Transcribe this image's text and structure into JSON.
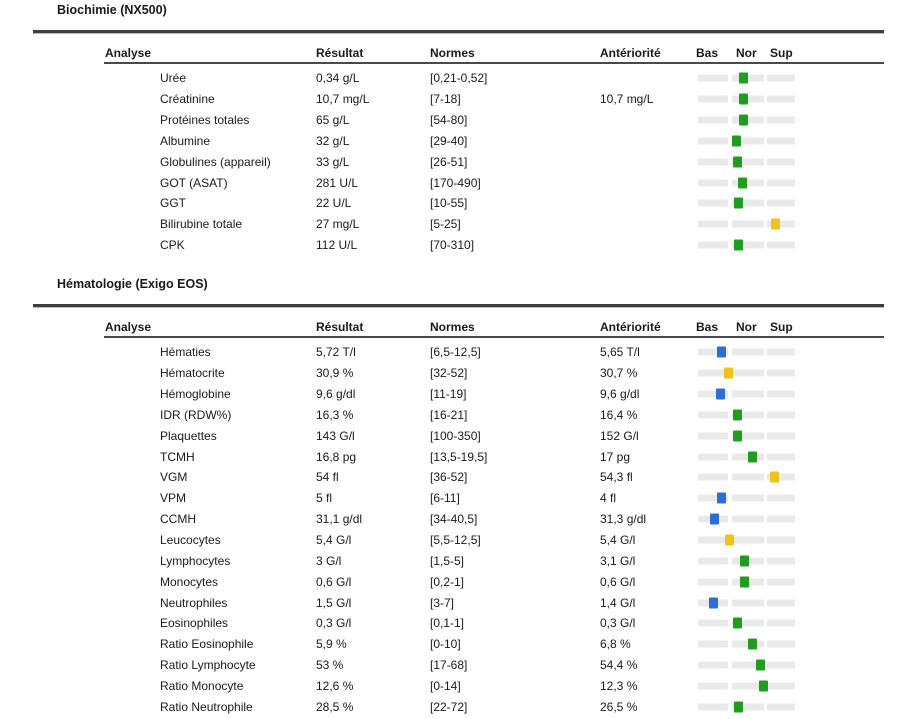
{
  "colors": {
    "green": "#1f9d1f",
    "yellow": "#f2c21a",
    "blue": "#2a6fd8",
    "bar_background": "#e9e9e9",
    "rule": "#3d3d3d",
    "text": "#1a1a1a"
  },
  "columns": {
    "analyse": "Analyse",
    "resultat": "Résultat",
    "normes": "Normes",
    "anteriorite": "Antériorité",
    "bas": "Bas",
    "nor": "Nor",
    "sup": "Sup"
  },
  "sections": [
    {
      "title": "Biochimie (NX500)",
      "rows": [
        {
          "analyse": "Urée",
          "resultat": "0,34 g/L",
          "normes": "[0,21-0,52]",
          "anteriorite": "",
          "marker": {
            "color": "green",
            "pos": 47
          }
        },
        {
          "analyse": "Créatinine",
          "resultat": "10,7 mg/L",
          "normes": "[7-18]",
          "anteriorite": "10,7 mg/L",
          "marker": {
            "color": "green",
            "pos": 47
          }
        },
        {
          "analyse": "Protéines totales",
          "resultat": "65 g/L",
          "normes": "[54-80]",
          "anteriorite": "",
          "marker": {
            "color": "green",
            "pos": 47
          }
        },
        {
          "analyse": "Albumine",
          "resultat": "32 g/L",
          "normes": "[29-40]",
          "anteriorite": "",
          "marker": {
            "color": "green",
            "pos": 40
          }
        },
        {
          "analyse": "Globulines (appareil)",
          "resultat": "33 g/L",
          "normes": "[26-51]",
          "anteriorite": "",
          "marker": {
            "color": "green",
            "pos": 41
          }
        },
        {
          "analyse": "GOT (ASAT)",
          "resultat": "281 U/L",
          "normes": "[170-490]",
          "anteriorite": "",
          "marker": {
            "color": "green",
            "pos": 46
          }
        },
        {
          "analyse": "GGT",
          "resultat": "22 U/L",
          "normes": "[10-55]",
          "anteriorite": "",
          "marker": {
            "color": "green",
            "pos": 42
          }
        },
        {
          "analyse": "Bilirubine totale",
          "resultat": "27 mg/L",
          "normes": "[5-25]",
          "anteriorite": "",
          "marker": {
            "color": "yellow",
            "pos": 80
          }
        },
        {
          "analyse": "CPK",
          "resultat": "112 U/L",
          "normes": "[70-310]",
          "anteriorite": "",
          "marker": {
            "color": "green",
            "pos": 42
          }
        }
      ]
    },
    {
      "title": "Hématologie (Exigo EOS)",
      "rows": [
        {
          "analyse": "Hématies",
          "resultat": "5,72 T/l",
          "normes": "[6,5-12,5]",
          "anteriorite": "5,65 T/l",
          "marker": {
            "color": "blue",
            "pos": 24
          }
        },
        {
          "analyse": "Hématocrite",
          "resultat": "30,9 %",
          "normes": "[32-52]",
          "anteriorite": "30,7 %",
          "marker": {
            "color": "yellow",
            "pos": 31
          }
        },
        {
          "analyse": "Hémoglobine",
          "resultat": "9,6 g/dl",
          "normes": "[11-19]",
          "anteriorite": "9,6 g/dl",
          "marker": {
            "color": "blue",
            "pos": 23
          }
        },
        {
          "analyse": "IDR (RDW%)",
          "resultat": "16,3 %",
          "normes": "[16-21]",
          "anteriorite": "16,4 %",
          "marker": {
            "color": "green",
            "pos": 41
          }
        },
        {
          "analyse": "Plaquettes",
          "resultat": "143 G/l",
          "normes": "[100-350]",
          "anteriorite": "152 G/l",
          "marker": {
            "color": "green",
            "pos": 41
          }
        },
        {
          "analyse": "TCMH",
          "resultat": "16,8 pg",
          "normes": "[13,5-19,5]",
          "anteriorite": "17 pg",
          "marker": {
            "color": "green",
            "pos": 56
          }
        },
        {
          "analyse": "VGM",
          "resultat": "54 fl",
          "normes": "[36-52]",
          "anteriorite": "54,3 fl",
          "marker": {
            "color": "yellow",
            "pos": 79
          }
        },
        {
          "analyse": "VPM",
          "resultat": "5 fl",
          "normes": "[6-11]",
          "anteriorite": "4 fl",
          "marker": {
            "color": "blue",
            "pos": 24
          }
        },
        {
          "analyse": "CCMH",
          "resultat": "31,1 g/dl",
          "normes": "[34-40,5]",
          "anteriorite": "31,3 g/dl",
          "marker": {
            "color": "blue",
            "pos": 17
          }
        },
        {
          "analyse": "Leucocytes",
          "resultat": "5,4 G/l",
          "normes": "[5,5-12,5]",
          "anteriorite": "5,4 G/l",
          "marker": {
            "color": "yellow",
            "pos": 32
          }
        },
        {
          "analyse": "Lymphocytes",
          "resultat": "3 G/l",
          "normes": "[1,5-5]",
          "anteriorite": "3,1 G/l",
          "marker": {
            "color": "green",
            "pos": 48
          }
        },
        {
          "analyse": "Monocytes",
          "resultat": "0,6 G/l",
          "normes": "[0,2-1]",
          "anteriorite": "0,6 G/l",
          "marker": {
            "color": "green",
            "pos": 48
          }
        },
        {
          "analyse": "Neutrophiles",
          "resultat": "1,5 G/l",
          "normes": "[3-7]",
          "anteriorite": "1,4 G/l",
          "marker": {
            "color": "blue",
            "pos": 16
          }
        },
        {
          "analyse": "Eosinophiles",
          "resultat": "0,3 G/l",
          "normes": "[0,1-1]",
          "anteriorite": "0,3 G/l",
          "marker": {
            "color": "green",
            "pos": 41
          }
        },
        {
          "analyse": "Ratio Eosinophile",
          "resultat": "5,9 %",
          "normes": "[0-10]",
          "anteriorite": "6,8 %",
          "marker": {
            "color": "green",
            "pos": 56
          }
        },
        {
          "analyse": "Ratio Lymphocyte",
          "resultat": "53 %",
          "normes": "[17-68]",
          "anteriorite": "54,4 %",
          "marker": {
            "color": "green",
            "pos": 64
          }
        },
        {
          "analyse": "Ratio Monocyte",
          "resultat": "12,6 %",
          "normes": "[0-14]",
          "anteriorite": "12,3 %",
          "marker": {
            "color": "green",
            "pos": 68
          }
        },
        {
          "analyse": "Ratio Neutrophile",
          "resultat": "28,5 %",
          "normes": "[22-72]",
          "anteriorite": "26,5 %",
          "marker": {
            "color": "green",
            "pos": 42
          }
        }
      ]
    }
  ]
}
